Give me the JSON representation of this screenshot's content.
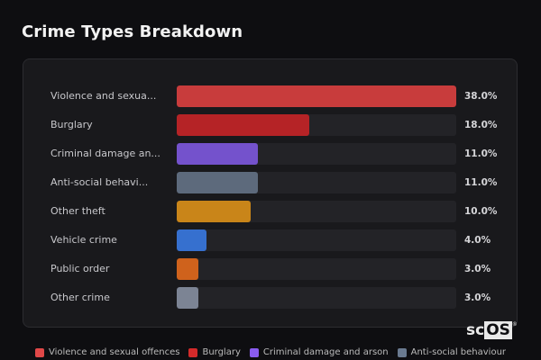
{
  "title": "Crime Types Breakdown",
  "rows": [
    {
      "label": "Violence and sexua...",
      "pct": "38.0%",
      "value": 38.0,
      "color": "#c83c3c"
    },
    {
      "label": "Burglary",
      "pct": "18.0%",
      "value": 18.0,
      "color": "#b52326"
    },
    {
      "label": "Criminal damage an...",
      "pct": "11.0%",
      "value": 11.0,
      "color": "#7452cc"
    },
    {
      "label": "Anti-social behavi...",
      "pct": "11.0%",
      "value": 11.0,
      "color": "#5d6a7c"
    },
    {
      "label": "Other theft",
      "pct": "10.0%",
      "value": 10.0,
      "color": "#c98519"
    },
    {
      "label": "Vehicle crime",
      "pct": "4.0%",
      "value": 4.0,
      "color": "#3670cf"
    },
    {
      "label": "Public order",
      "pct": "3.0%",
      "value": 3.0,
      "color": "#cf621c"
    },
    {
      "label": "Other crime",
      "pct": "3.0%",
      "value": 3.0,
      "color": "#7c8494"
    }
  ],
  "legend": [
    {
      "label": "Violence and sexual offences",
      "color": "#e04848"
    },
    {
      "label": "Burglary",
      "color": "#d42a2a"
    },
    {
      "label": "Criminal damage and arson",
      "color": "#8a5cf0"
    },
    {
      "label": "Anti-social behaviour",
      "color": "#6a7a90"
    }
  ],
  "logo": {
    "prefix": "sc",
    "boxed": "OS"
  }
}
